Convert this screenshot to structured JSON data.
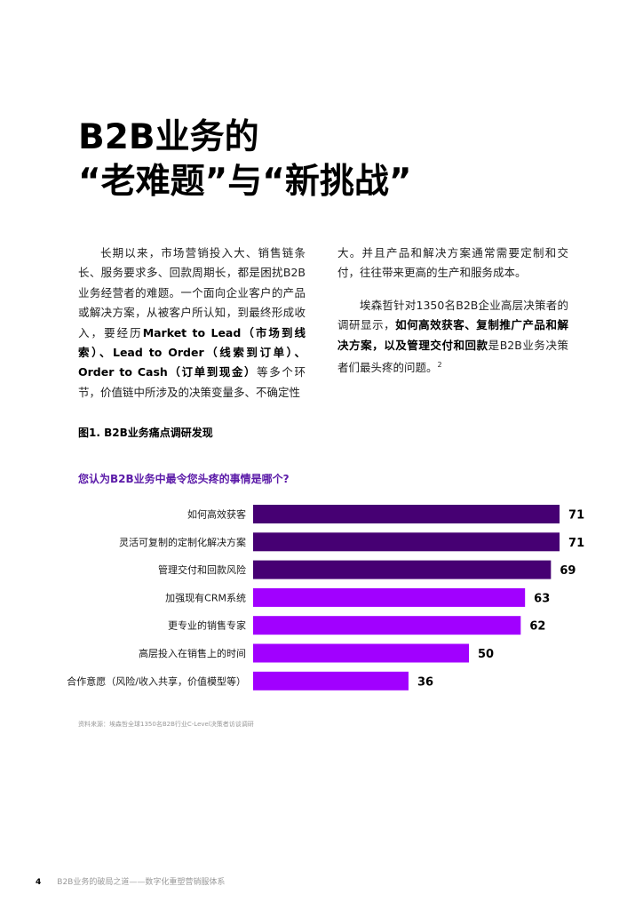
{
  "title": {
    "line1": "B2B业务的",
    "line2": "“老难题”与“新挑战”"
  },
  "body_left": {
    "p1": "长期以来，市场营销投入大、销售链条长、服务要求多、回款周期长，都是困扰B2B业务经营者的难题。一个面向企业客户的产品或解决方案，从被客户所认知，到最终形成收入，要经历",
    "b1": "Market to Lead（市场到线索）、Lead to Order（线索到订单）、Order to Cash（订单到现金）",
    "p2": "等多个环节，价值链中所涉及的决策变量多、不确定性"
  },
  "body_right": {
    "p1": "大。并且产品和解决方案通常需要定制和交付，往往带来更高的生产和服务成本。",
    "p2a": "埃森哲针对1350名B2B企业高层决策者的调研显示，",
    "b2": "如何高效获客、复制推广产品和解决方案，以及管理交付和回款",
    "p2b": "是B2B业务决策者们最头疼的问题。",
    "sup": "2"
  },
  "figure_title": "图1. B2B业务痛点调研发现",
  "chart_data": {
    "type": "bar",
    "orientation": "horizontal",
    "title": "您认为B2B业务中最令您头疼的事情是哪个?",
    "categories": [
      "如何高效获客",
      "灵活可复制的定制化解决方案",
      "管理交付和回款风险",
      "加强现有CRM系统",
      "更专业的销售专家",
      "高层投入在销售上的时间",
      "合作意愿（风险/收入共享，价值模型等）"
    ],
    "values": [
      71,
      71,
      69,
      63,
      62,
      50,
      36
    ],
    "colors": [
      "#460073",
      "#460073",
      "#460073",
      "#a100ff",
      "#a100ff",
      "#a100ff",
      "#a100ff"
    ],
    "xlim": [
      0,
      80
    ],
    "grid": false,
    "legend": "none"
  },
  "source": "资料来源：埃森哲全球1350名B2B行业C-Level决策者访谈调研",
  "footer": {
    "page": "4",
    "text": "B2B业务的破局之道——数字化重塑营销服体系"
  }
}
